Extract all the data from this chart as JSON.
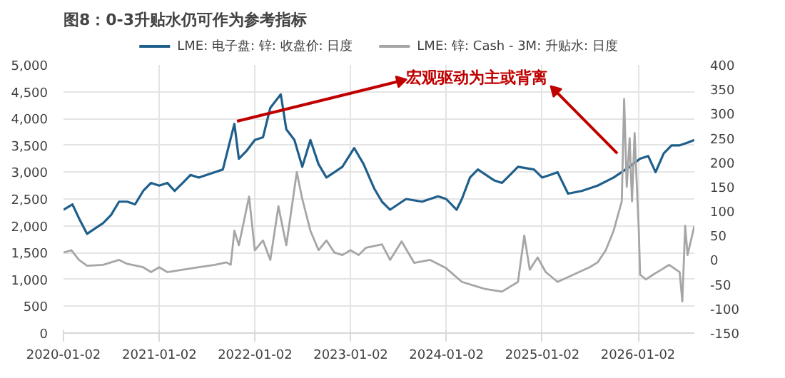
{
  "chart_data": {
    "type": "line",
    "title": "图8：0-3升贴水仍可作为参考指标",
    "annotations": [
      {
        "text": "宏观驱动为主或背离",
        "x": "2021-10-25",
        "y": 3950
      }
    ],
    "xlim": [
      "2020-01-02",
      "2026-08-05"
    ],
    "xticks": [
      "2020-01-02",
      "2021-01-02",
      "2022-01-02",
      "2023-01-02",
      "2024-01-02",
      "2025-01-02",
      "2026-01-02"
    ],
    "ylim": [
      0,
      5000
    ],
    "yticks": [
      {
        "value": 0,
        "label": "0"
      },
      {
        "value": 500,
        "label": "500"
      },
      {
        "value": 1000,
        "label": "1,000"
      },
      {
        "value": 1500,
        "label": "1,500"
      },
      {
        "value": 2000,
        "label": "2,000"
      },
      {
        "value": 2500,
        "label": "2,500"
      },
      {
        "value": 3000,
        "label": "3,000"
      },
      {
        "value": 3500,
        "label": "3,500"
      },
      {
        "value": 4000,
        "label": "4,000"
      },
      {
        "value": 4500,
        "label": "4,500"
      },
      {
        "value": 5000,
        "label": "5,000"
      }
    ],
    "y2lim": [
      -150,
      400
    ],
    "y2ticks": [
      -150,
      -100,
      -50,
      0,
      50,
      100,
      150,
      200,
      250,
      300,
      350,
      400
    ],
    "grid": true,
    "legend": "top",
    "line_style": "solid",
    "series": [
      {
        "name": "LME: 电子盘: 锌: 收盘价: 日度",
        "color": "#1f5f8b",
        "x": [
          "2020-01-02",
          "2020-02-05",
          "2020-03-05",
          "2020-04-01",
          "2020-05-01",
          "2020-06-01",
          "2020-07-01",
          "2020-08-01",
          "2020-09-01",
          "2020-10-01",
          "2020-11-01",
          "2020-12-01",
          "2021-01-01",
          "2021-02-01",
          "2021-03-01",
          "2021-04-01",
          "2021-05-01",
          "2021-06-01",
          "2021-07-01",
          "2021-08-01",
          "2021-09-01",
          "2021-10-15",
          "2021-11-01",
          "2021-12-01",
          "2022-01-01",
          "2022-02-01",
          "2022-03-01",
          "2022-04-10",
          "2022-05-01",
          "2022-06-01",
          "2022-07-01",
          "2022-08-01",
          "2022-09-01",
          "2022-10-01",
          "2022-11-01",
          "2022-12-01",
          "2023-01-15",
          "2023-02-20",
          "2023-04-01",
          "2023-05-01",
          "2023-06-01",
          "2023-08-01",
          "2023-10-01",
          "2023-12-01",
          "2024-01-01",
          "2024-02-10",
          "2024-03-01",
          "2024-04-01",
          "2024-05-01",
          "2024-07-01",
          "2024-08-01",
          "2024-09-01",
          "2024-10-01",
          "2024-12-01",
          "2025-01-01",
          "2025-02-01",
          "2025-03-01",
          "2025-04-10",
          "2025-06-01",
          "2025-08-01",
          "2025-10-01",
          "2025-12-01",
          "2026-01-10",
          "2026-02-10",
          "2026-03-10",
          "2026-04-10",
          "2026-05-10",
          "2026-06-10",
          "2026-07-10",
          "2026-08-05"
        ],
        "values": [
          2300,
          2400,
          2100,
          1850,
          1950,
          2050,
          2200,
          2450,
          2450,
          2400,
          2650,
          2800,
          2750,
          2800,
          2650,
          2800,
          2950,
          2900,
          2950,
          3000,
          3050,
          3900,
          3250,
          3400,
          3600,
          3650,
          4200,
          4450,
          3800,
          3600,
          3100,
          3600,
          3150,
          2900,
          3000,
          3100,
          3450,
          3150,
          2700,
          2450,
          2300,
          2500,
          2450,
          2550,
          2500,
          2300,
          2500,
          2900,
          3050,
          2850,
          2800,
          2950,
          3100,
          3050,
          2900,
          2950,
          3000,
          2600,
          2650,
          2750,
          2900,
          3100,
          3250,
          3300,
          3000,
          3350,
          3500,
          3500,
          3550,
          3600
        ]
      },
      {
        "name": "LME: 锌: Cash - 3M: 升贴水: 日度",
        "color": "#a6a6a6",
        "axis": "y2",
        "x": [
          "2020-01-02",
          "2020-02-01",
          "2020-03-01",
          "2020-04-01",
          "2020-06-01",
          "2020-08-01",
          "2020-09-01",
          "2020-11-01",
          "2020-12-01",
          "2021-01-01",
          "2021-02-01",
          "2021-04-01",
          "2021-06-01",
          "2021-08-01",
          "2021-09-15",
          "2021-10-01",
          "2021-10-15",
          "2021-11-01",
          "2021-12-10",
          "2022-01-01",
          "2022-02-01",
          "2022-03-01",
          "2022-04-01",
          "2022-05-01",
          "2022-06-10",
          "2022-07-01",
          "2022-08-01",
          "2022-09-01",
          "2022-10-01",
          "2022-11-01",
          "2022-12-01",
          "2023-01-01",
          "2023-02-01",
          "2023-03-01",
          "2023-05-01",
          "2023-06-01",
          "2023-07-15",
          "2023-09-01",
          "2023-11-01",
          "2024-01-01",
          "2024-03-01",
          "2024-05-01",
          "2024-06-01",
          "2024-08-01",
          "2024-10-01",
          "2024-10-25",
          "2024-11-15",
          "2024-12-15",
          "2025-01-15",
          "2025-03-01",
          "2025-05-01",
          "2025-07-01",
          "2025-08-01",
          "2025-09-01",
          "2025-10-01",
          "2025-11-01",
          "2025-11-10",
          "2025-11-20",
          "2025-12-01",
          "2025-12-10",
          "2025-12-20",
          "2026-01-05",
          "2026-01-10",
          "2026-02-01",
          "2026-03-01",
          "2026-04-01",
          "2026-05-01",
          "2026-06-10",
          "2026-06-20",
          "2026-07-01",
          "2026-07-10",
          "2026-08-05"
        ],
        "values": [
          15,
          20,
          0,
          -12,
          -10,
          0,
          -8,
          -15,
          -25,
          -15,
          -25,
          -20,
          -15,
          -10,
          -5,
          -10,
          60,
          30,
          130,
          20,
          40,
          0,
          110,
          30,
          180,
          125,
          60,
          20,
          40,
          15,
          10,
          20,
          10,
          25,
          32,
          0,
          38,
          -6,
          0,
          -17,
          -45,
          -55,
          -60,
          -65,
          -45,
          50,
          -20,
          5,
          -25,
          -45,
          -30,
          -15,
          -5,
          20,
          60,
          120,
          330,
          150,
          250,
          120,
          260,
          60,
          -30,
          -40,
          -30,
          -20,
          -10,
          -25,
          -85,
          70,
          10,
          70
        ]
      }
    ]
  }
}
